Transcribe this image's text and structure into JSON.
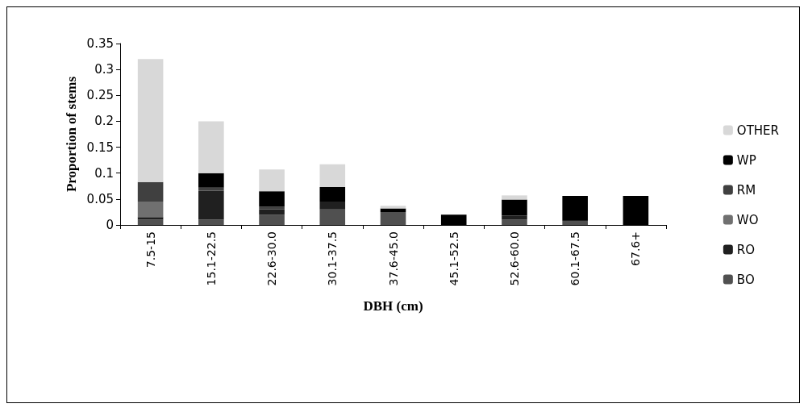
{
  "chart_data": {
    "type": "bar",
    "stacked": true,
    "xlabel": "DBH (cm)",
    "ylabel": "Proportion of stems",
    "categories": [
      "7.5-15",
      "15.1-22.5",
      "22.6-30.0",
      "30.1-37.5",
      "37.6-45.0",
      "45.1-52.5",
      "52.6-60.0",
      "60.1-67.5",
      "67.6+"
    ],
    "series": [
      {
        "name": "BO",
        "color": "#505050",
        "values": [
          0.01,
          0.01,
          0.02,
          0.03,
          0.025,
          0,
          0.01,
          0.008,
          0
        ]
      },
      {
        "name": "RO",
        "color": "#202020",
        "values": [
          0.005,
          0.056,
          0.01,
          0.015,
          0,
          0,
          0.008,
          0,
          0
        ]
      },
      {
        "name": "WO",
        "color": "#707070",
        "values": [
          0.03,
          0,
          0,
          0,
          0,
          0,
          0,
          0,
          0
        ]
      },
      {
        "name": "RM",
        "color": "#404040",
        "values": [
          0.038,
          0.006,
          0.005,
          0,
          0,
          0,
          0,
          0,
          0
        ]
      },
      {
        "name": "WP",
        "color": "#000000",
        "values": [
          0,
          0.028,
          0.03,
          0.028,
          0.007,
          0.02,
          0.031,
          0.048,
          0.056
        ]
      },
      {
        "name": "OTHER",
        "color": "#d8d8d8",
        "values": [
          0.237,
          0.1,
          0.042,
          0.044,
          0.005,
          0,
          0.008,
          0,
          0
        ]
      }
    ],
    "ylim": [
      0,
      0.35
    ],
    "yticks": [
      0,
      0.05,
      0.1,
      0.15,
      0.2,
      0.25,
      0.3,
      0.35
    ],
    "grid": false,
    "legend": "right"
  }
}
